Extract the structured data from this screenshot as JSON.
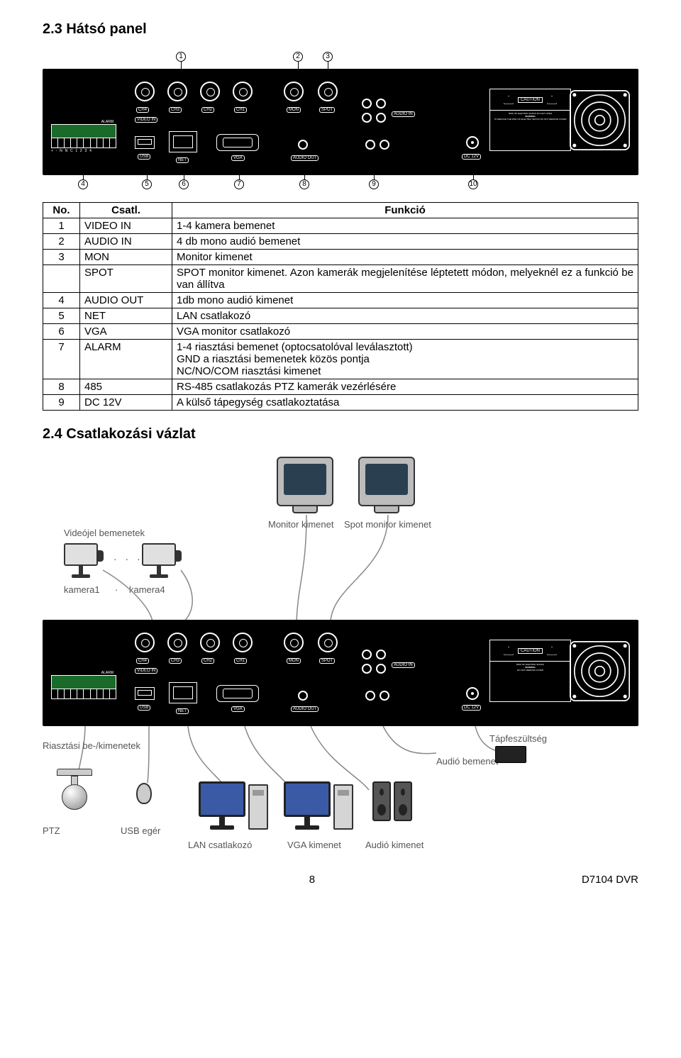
{
  "section1_title": "2.3 Hátsó panel",
  "section2_title": "2.4 Csatlakozási vázlat",
  "markers_top": [
    "1",
    "2",
    "3"
  ],
  "markers_bottom": [
    "4",
    "5",
    "6",
    "7",
    "8",
    "9",
    "10"
  ],
  "panel_ports": {
    "video_in": "VIDEO IN",
    "channels": [
      "CH4",
      "CH3",
      "CH2",
      "CH1"
    ],
    "mon": "MON",
    "spot": "SPOT",
    "audio_in": "AUDIO IN",
    "audio_out": "AUDIO OUT",
    "usb": "USB",
    "net": "NET",
    "vga": "VGA",
    "dc": "DC 12V",
    "alarm": "ALARM",
    "caution": "CAUTION",
    "warning": "WARNING"
  },
  "table": {
    "headers": [
      "No.",
      "Csatl.",
      "Funkció"
    ],
    "rows": [
      {
        "no": "1",
        "port": "VIDEO IN",
        "func": "1-4 kamera bemenet"
      },
      {
        "no": "2",
        "port": "AUDIO IN",
        "func": "4 db mono audió bemenet"
      },
      {
        "no": "3",
        "port": "MON",
        "func": "Monitor kimenet"
      },
      {
        "no": "",
        "port": "SPOT",
        "func": "SPOT monitor kimenet. Azon kamerák megjelenítése léptetett módon, melyeknél ez a funkció be van állítva"
      },
      {
        "no": "4",
        "port": "AUDIO OUT",
        "func": "1db mono audió kimenet"
      },
      {
        "no": "5",
        "port": "NET",
        "func": "LAN csatlakozó"
      },
      {
        "no": "6",
        "port": "VGA",
        "func": "VGA monitor csatlakozó"
      },
      {
        "no": "7",
        "port": "ALARM",
        "func": "1-4 riasztási bemenet (optocsatolóval leválasztott)\nGND a riasztási bemenetek közös pontja\nNC/NO/COM riasztási kimenet"
      },
      {
        "no": "8",
        "port": "485",
        "func": "RS-485 csatlakozás PTZ kamerák vezérlésére"
      },
      {
        "no": "9",
        "port": "DC 12V",
        "func": "A külső tápegység csatlakoztatása"
      }
    ]
  },
  "conn_labels": {
    "video_in": "Videójel bemenetek",
    "mon_out": "Monitor kimenet",
    "spot_out": "Spot monitor kimenet",
    "cam1": "kamera1",
    "cam4": "kamera4",
    "alarm_io": "Riasztási be-/kimenetek",
    "ptz": "PTZ",
    "usb_mouse": "USB egér",
    "lan": "LAN csatlakozó",
    "vga_out": "VGA kimenet",
    "audio_out": "Audió kimenet",
    "audio_in": "Audió bemenet",
    "power": "Tápfeszültség"
  },
  "footer": {
    "page": "8",
    "doc": "D7104 DVR"
  },
  "colors": {
    "panel_bg": "#000000",
    "page_bg": "#ffffff",
    "text": "#000000",
    "label_gray": "#555555",
    "alarm_green": "#1a6b2a",
    "crt_body": "#bcbcbc",
    "crt_screen": "#2a4050",
    "lcd_screen": "#3b5aa6",
    "wire": "#888888"
  }
}
